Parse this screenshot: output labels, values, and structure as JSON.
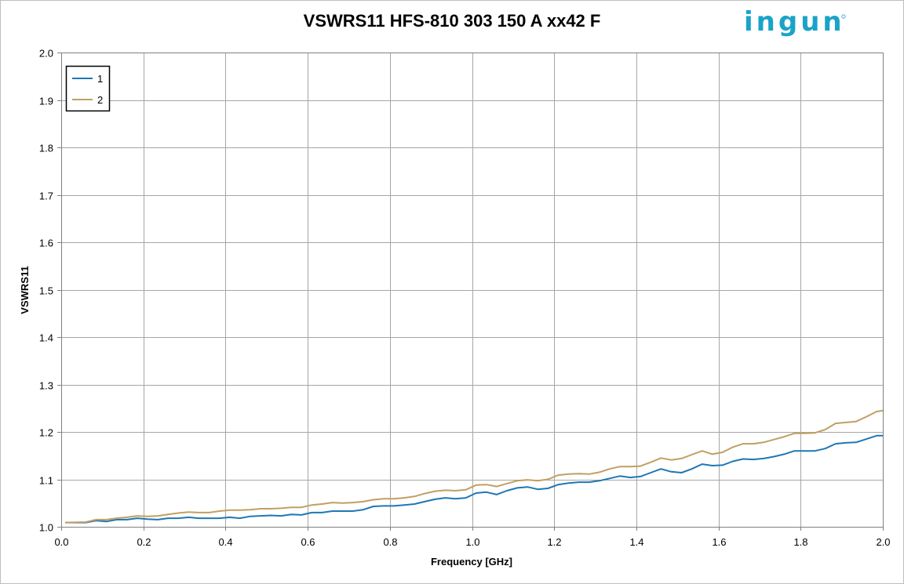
{
  "brand": {
    "logo_text": "ingun",
    "logo_color": "#1aa3c8"
  },
  "chart_data": {
    "type": "line",
    "title": "VSWRS11 HFS-810 303 150 A xx42 F",
    "xlabel": "Frequency [GHz]",
    "ylabel": "VSWRS11",
    "xlim": [
      0.0,
      2.0
    ],
    "ylim": [
      1.0,
      2.0
    ],
    "xticks": [
      "0.0",
      "0.2",
      "0.4",
      "0.6",
      "0.8",
      "1.0",
      "1.2",
      "1.4",
      "1.6",
      "1.8",
      "2.0"
    ],
    "yticks": [
      "1.0",
      "1.1",
      "1.2",
      "1.3",
      "1.4",
      "1.5",
      "1.6",
      "1.7",
      "1.8",
      "1.9",
      "2.0"
    ],
    "grid": true,
    "legend_position": "top-left",
    "x": [
      0.01,
      0.06,
      0.085,
      0.11,
      0.135,
      0.16,
      0.185,
      0.21,
      0.235,
      0.26,
      0.285,
      0.31,
      0.335,
      0.36,
      0.385,
      0.41,
      0.435,
      0.46,
      0.485,
      0.51,
      0.535,
      0.56,
      0.585,
      0.61,
      0.635,
      0.66,
      0.685,
      0.71,
      0.735,
      0.76,
      0.785,
      0.81,
      0.835,
      0.86,
      0.885,
      0.91,
      0.935,
      0.96,
      0.985,
      1.01,
      1.035,
      1.06,
      1.085,
      1.11,
      1.135,
      1.16,
      1.185,
      1.21,
      1.235,
      1.26,
      1.285,
      1.31,
      1.335,
      1.36,
      1.385,
      1.41,
      1.435,
      1.46,
      1.485,
      1.51,
      1.535,
      1.56,
      1.585,
      1.61,
      1.635,
      1.66,
      1.685,
      1.71,
      1.735,
      1.76,
      1.785,
      1.81,
      1.835,
      1.86,
      1.885,
      1.91,
      1.935,
      1.96,
      1.985,
      2.0
    ],
    "series": [
      {
        "name": "1",
        "color": "#1f77b4",
        "values": [
          1.009,
          1.009,
          1.013,
          1.011,
          1.015,
          1.015,
          1.018,
          1.016,
          1.015,
          1.018,
          1.018,
          1.02,
          1.018,
          1.018,
          1.018,
          1.02,
          1.018,
          1.022,
          1.023,
          1.024,
          1.023,
          1.026,
          1.025,
          1.03,
          1.03,
          1.033,
          1.033,
          1.033,
          1.036,
          1.043,
          1.044,
          1.044,
          1.046,
          1.048,
          1.053,
          1.058,
          1.061,
          1.059,
          1.061,
          1.071,
          1.073,
          1.068,
          1.076,
          1.082,
          1.084,
          1.079,
          1.081,
          1.089,
          1.092,
          1.094,
          1.094,
          1.097,
          1.102,
          1.107,
          1.104,
          1.106,
          1.114,
          1.122,
          1.116,
          1.114,
          1.122,
          1.132,
          1.129,
          1.13,
          1.138,
          1.143,
          1.142,
          1.144,
          1.148,
          1.153,
          1.16,
          1.16,
          1.16,
          1.165,
          1.175,
          1.177,
          1.178,
          1.185,
          1.192,
          1.192
        ]
      },
      {
        "name": "2",
        "color": "#c0a062",
        "values": [
          1.009,
          1.01,
          1.015,
          1.015,
          1.018,
          1.02,
          1.023,
          1.022,
          1.023,
          1.026,
          1.029,
          1.031,
          1.03,
          1.03,
          1.033,
          1.035,
          1.035,
          1.036,
          1.038,
          1.038,
          1.039,
          1.041,
          1.041,
          1.046,
          1.048,
          1.051,
          1.05,
          1.051,
          1.053,
          1.057,
          1.059,
          1.059,
          1.061,
          1.064,
          1.07,
          1.075,
          1.077,
          1.076,
          1.078,
          1.088,
          1.089,
          1.085,
          1.091,
          1.097,
          1.099,
          1.097,
          1.1,
          1.109,
          1.111,
          1.112,
          1.111,
          1.115,
          1.122,
          1.127,
          1.127,
          1.128,
          1.136,
          1.145,
          1.141,
          1.144,
          1.152,
          1.16,
          1.153,
          1.157,
          1.168,
          1.175,
          1.175,
          1.178,
          1.184,
          1.19,
          1.197,
          1.197,
          1.198,
          1.205,
          1.218,
          1.22,
          1.222,
          1.232,
          1.243,
          1.245
        ]
      }
    ]
  }
}
